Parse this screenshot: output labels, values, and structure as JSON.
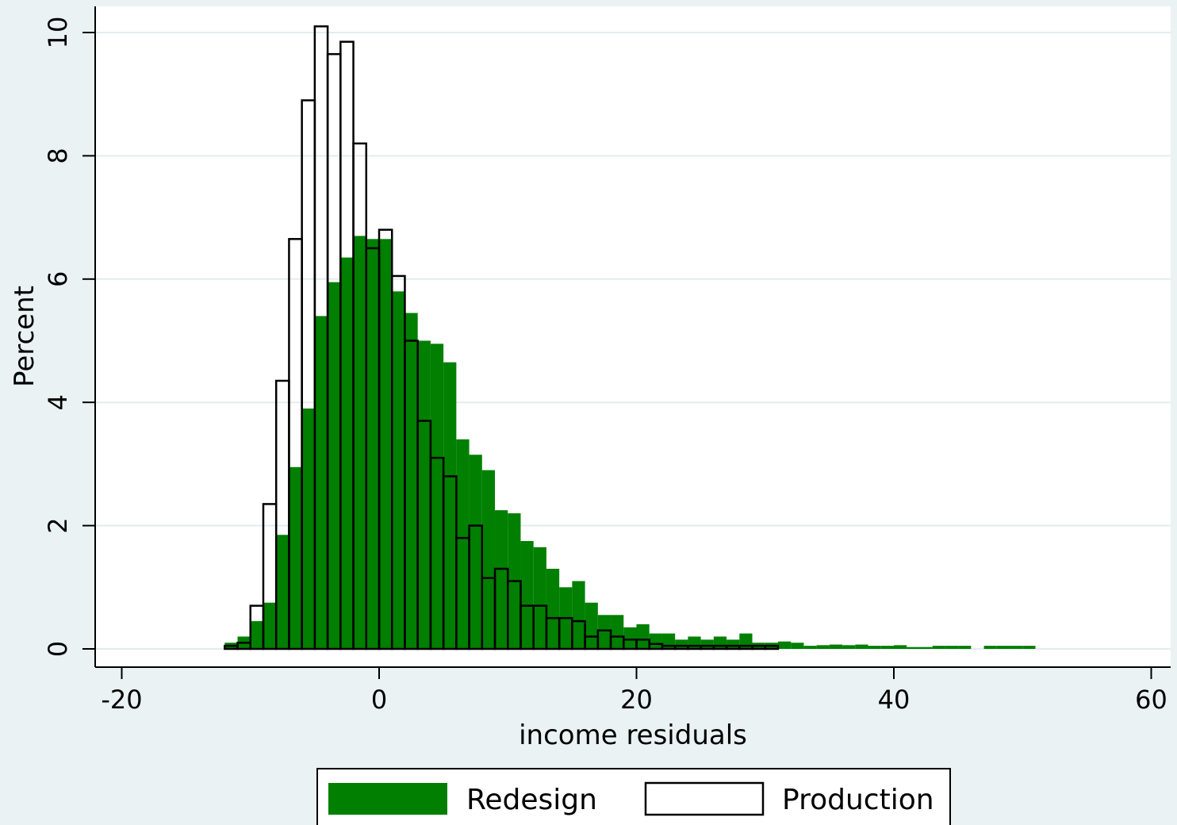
{
  "chart_data": {
    "type": "bar",
    "title": "",
    "xlabel": "income residuals",
    "ylabel": "Percent",
    "xlim": [
      -20,
      61
    ],
    "ylim": [
      0,
      10.4
    ],
    "xticks": [
      "-20",
      "0",
      "20",
      "40",
      "60"
    ],
    "yticks": [
      "0",
      "2",
      "4",
      "6",
      "8",
      "10"
    ],
    "grid": true,
    "legend_position": "bottom",
    "bin_width": 1,
    "bin_start": -12,
    "series": [
      {
        "name": "Redesign",
        "style": "filled",
        "color": "#007f00",
        "values": [
          0.1,
          0.2,
          0.45,
          0.75,
          1.85,
          2.95,
          3.9,
          5.4,
          5.95,
          6.35,
          6.7,
          6.65,
          6.65,
          5.8,
          5.45,
          5.0,
          4.95,
          4.65,
          3.4,
          3.15,
          2.9,
          2.25,
          2.2,
          1.75,
          1.65,
          1.3,
          1.0,
          1.1,
          0.75,
          0.55,
          0.55,
          0.35,
          0.4,
          0.25,
          0.25,
          0.15,
          0.2,
          0.15,
          0.2,
          0.15,
          0.25,
          0.1,
          0.1,
          0.12,
          0.1,
          0.05,
          0.06,
          0.07,
          0.06,
          0.07,
          0.05,
          0.05,
          0.06,
          0.03,
          0.03,
          0.05,
          0.05,
          0.05,
          0,
          0.05,
          0.05,
          0.05,
          0.05,
          0,
          0,
          0,
          0,
          0,
          0,
          0,
          0,
          0,
          0,
          0,
          0,
          0,
          0.04
        ]
      },
      {
        "name": "Production",
        "style": "outline",
        "color": "#000000",
        "values": [
          0.05,
          0.1,
          0.7,
          2.35,
          4.35,
          6.65,
          8.9,
          10.1,
          9.65,
          9.85,
          8.2,
          6.5,
          6.8,
          6.05,
          5.0,
          3.7,
          3.1,
          2.8,
          1.8,
          2.0,
          1.15,
          1.3,
          1.1,
          0.7,
          0.7,
          0.5,
          0.5,
          0.45,
          0.2,
          0.3,
          0.2,
          0.15,
          0.15,
          0.08,
          0.05,
          0.05,
          0.05,
          0.05,
          0.05,
          0.05,
          0.05,
          0.05,
          0.05
        ]
      }
    ]
  }
}
